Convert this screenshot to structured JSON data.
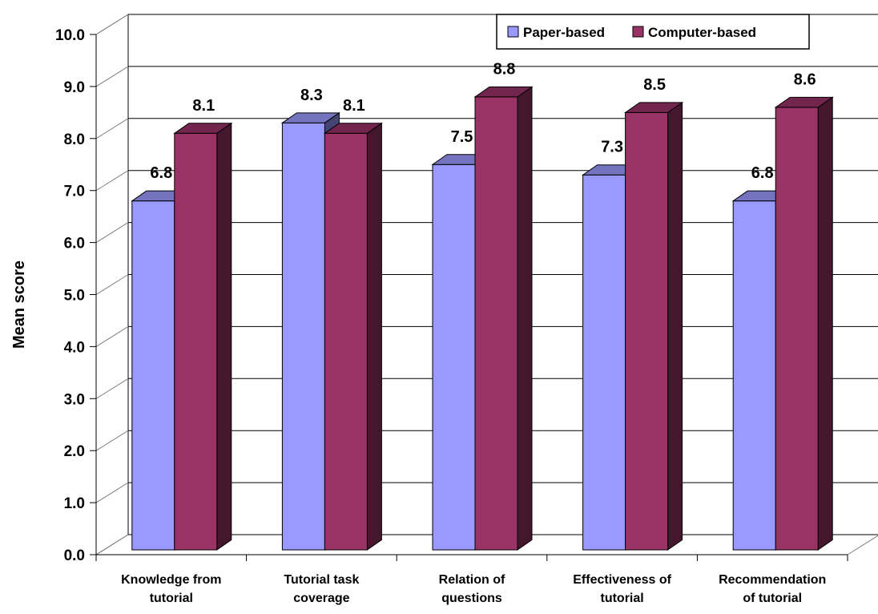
{
  "chart_data": {
    "type": "bar",
    "style": "3d-clustered",
    "categories": [
      [
        "Knowledge from",
        "tutorial"
      ],
      [
        "Tutorial task",
        "coverage"
      ],
      [
        "Relation of",
        "questions"
      ],
      [
        "Effectiveness of",
        "tutorial"
      ],
      [
        "Recommendation",
        "of tutorial"
      ]
    ],
    "series": [
      {
        "name": "Paper-based",
        "values": [
          6.8,
          8.3,
          7.5,
          7.3,
          6.8
        ],
        "labels": [
          "6.8",
          "8.3",
          "7.5",
          "7.3",
          "6.8"
        ],
        "color": "#9999FF"
      },
      {
        "name": "Computer-based",
        "values": [
          8.1,
          8.1,
          8.8,
          8.5,
          8.6
        ],
        "labels": [
          "8.1",
          "8.1",
          "8.8",
          "8.5",
          "8.6"
        ],
        "color": "#993366"
      }
    ],
    "ylabel": "Mean score",
    "ylim": [
      0,
      10
    ],
    "yticks": [
      "0.0",
      "1.0",
      "2.0",
      "3.0",
      "4.0",
      "5.0",
      "6.0",
      "7.0",
      "8.0",
      "9.0",
      "10.0"
    ],
    "grid": true,
    "legend_position": "top-right"
  }
}
